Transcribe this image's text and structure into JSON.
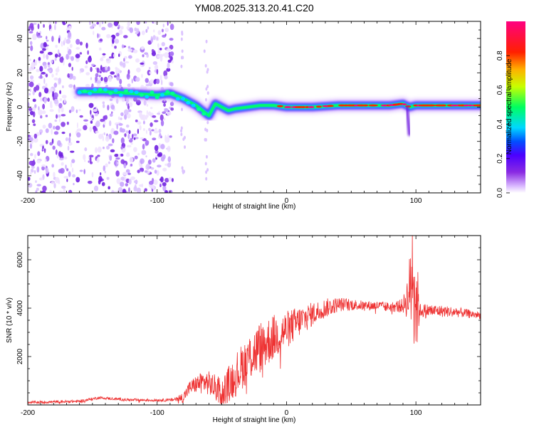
{
  "title": "YM08.2025.313.20.41.C20",
  "chart_data": [
    {
      "type": "heatmap",
      "xlabel": "Height of straight line (km)",
      "ylabel": "Frequency (Hz)",
      "xlim": [
        -200,
        150
      ],
      "ylim": [
        -50,
        50
      ],
      "x_ticks": [
        -200,
        -100,
        0,
        100
      ],
      "y_ticks": [
        -40,
        -20,
        0,
        20,
        40
      ],
      "colorbar": {
        "label": "Normalized spectral amplitude",
        "range": [
          0.0,
          1.0
        ],
        "ticks": [
          "0.0",
          "0.2",
          "0.4",
          "0.6",
          "0.8"
        ],
        "colormap": [
          "#ffffff",
          "#d9b8ff",
          "#8a2be2",
          "#4b00ff",
          "#0050ff",
          "#00d8ff",
          "#00ff60",
          "#c8ff00",
          "#ffb000",
          "#ff2000",
          "#ff0080"
        ]
      },
      "ridge": {
        "x": [
          -160,
          -140,
          -120,
          -100,
          -90,
          -80,
          -70,
          -65,
          -60,
          -55,
          -50,
          -45,
          -40,
          -30,
          -20,
          -10,
          0,
          10,
          20,
          40,
          60,
          80,
          90,
          95,
          100,
          120,
          150
        ],
        "freq": [
          9,
          9,
          8,
          7,
          8,
          5,
          1,
          -2,
          -5,
          2,
          0,
          -2,
          -1,
          0,
          1,
          1,
          0,
          0,
          0,
          1,
          1,
          1,
          2,
          0,
          1,
          1,
          1
        ]
      },
      "noise_region_x": [
        -200,
        -88
      ]
    },
    {
      "type": "line",
      "xlabel": "Height of straight line (km)",
      "ylabel": "SNR (10 * v/v)",
      "xlim": [
        -200,
        150
      ],
      "ylim": [
        0,
        7000
      ],
      "x_ticks": [
        -200,
        -100,
        0,
        100
      ],
      "y_ticks": [
        2000,
        4000,
        6000
      ],
      "color": "#ee3333",
      "envelope": {
        "x": [
          -200,
          -160,
          -150,
          -145,
          -120,
          -100,
          -90,
          -80,
          -75,
          -70,
          -65,
          -60,
          -55,
          -50,
          -40,
          -30,
          -20,
          -10,
          0,
          10,
          20,
          30,
          40,
          50,
          60,
          70,
          80,
          90,
          93,
          96,
          98,
          100,
          103,
          110,
          130,
          150
        ],
        "y": [
          100,
          150,
          250,
          300,
          200,
          200,
          200,
          300,
          700,
          850,
          950,
          900,
          700,
          500,
          1200,
          1900,
          2400,
          2800,
          3100,
          3450,
          3750,
          4000,
          4150,
          4150,
          4100,
          4100,
          4050,
          4100,
          4400,
          4800,
          6500,
          4300,
          3900,
          3900,
          3850,
          3700
        ]
      },
      "noise_amplitude": {
        "x": [
          -200,
          -90,
          -80,
          -60,
          -50,
          -40,
          -20,
          0,
          20,
          40,
          60,
          80,
          90,
          94,
          97,
          100,
          103,
          150
        ],
        "y": [
          60,
          60,
          220,
          500,
          600,
          900,
          1100,
          800,
          500,
          300,
          200,
          200,
          300,
          1000,
          2500,
          2600,
          300,
          150
        ]
      }
    }
  ]
}
